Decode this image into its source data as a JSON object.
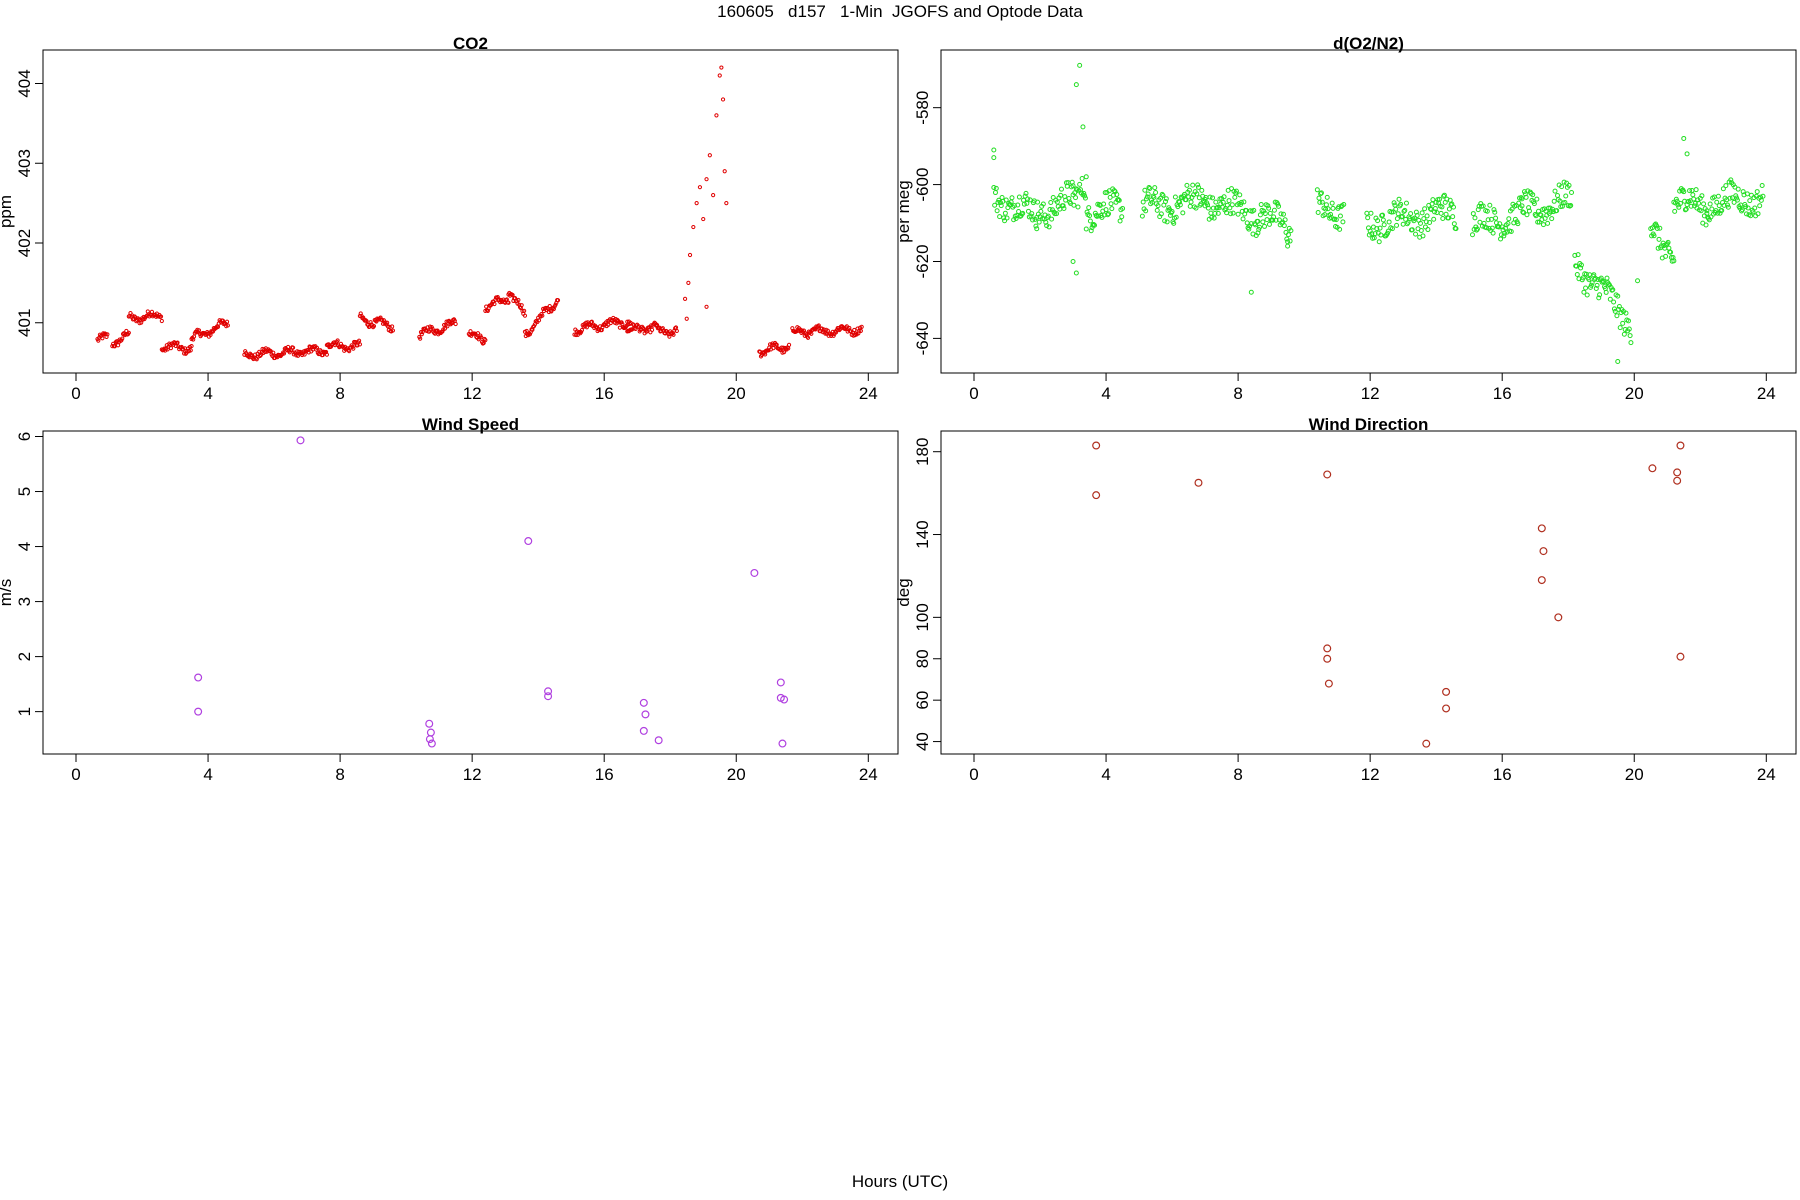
{
  "figure": {
    "title": "160605   d157   1-Min  JGOFS and Optode Data",
    "xlabel": "Hours (UTC)"
  },
  "colors": {
    "co2": "#e00000",
    "o2n2": "#22dd22",
    "wind_speed": "#b040e0",
    "wind_dir": "#b03020"
  },
  "chart_data": [
    {
      "id": "co2",
      "type": "scatter",
      "title": "CO2",
      "ylabel": "ppm",
      "xlim": [
        -1,
        24.9
      ],
      "ylim": [
        400.37,
        404.42
      ],
      "xticks": [
        0,
        4,
        8,
        12,
        16,
        20,
        24
      ],
      "yticks": [
        401,
        402,
        403,
        404
      ],
      "segments": [
        {
          "x0": 0.65,
          "x1": 0.95,
          "y0": 400.8,
          "y1": 400.8
        },
        {
          "x0": 1.1,
          "x1": 1.6,
          "y0": 400.75,
          "y1": 400.85
        },
        {
          "x0": 1.6,
          "x1": 2.6,
          "y0": 401.05,
          "y1": 401.1
        },
        {
          "x0": 2.6,
          "x1": 3.5,
          "y0": 400.7,
          "y1": 400.68
        },
        {
          "x0": 3.5,
          "x1": 4.6,
          "y0": 400.8,
          "y1": 401.0
        },
        {
          "x0": 5.1,
          "x1": 7.6,
          "y0": 400.6,
          "y1": 400.65
        },
        {
          "x0": 7.6,
          "x1": 8.6,
          "y0": 400.72,
          "y1": 400.7
        },
        {
          "x0": 8.6,
          "x1": 9.6,
          "y0": 401.05,
          "y1": 400.95
        },
        {
          "x0": 10.4,
          "x1": 11.5,
          "y0": 400.85,
          "y1": 401.0
        },
        {
          "x0": 11.9,
          "x1": 12.4,
          "y0": 400.85,
          "y1": 400.8
        },
        {
          "x0": 12.4,
          "x1": 13.1,
          "y0": 401.2,
          "y1": 401.3
        },
        {
          "x0": 13.1,
          "x1": 13.6,
          "y0": 401.4,
          "y1": 401.1
        },
        {
          "x0": 13.6,
          "x1": 14.6,
          "y0": 400.85,
          "y1": 401.3
        },
        {
          "x0": 15.1,
          "x1": 16.4,
          "y0": 400.92,
          "y1": 401.0
        },
        {
          "x0": 16.4,
          "x1": 16.8,
          "y0": 401.0,
          "y1": 401.0
        },
        {
          "x0": 16.7,
          "x1": 17.6,
          "y0": 400.9,
          "y1": 400.95
        },
        {
          "x0": 17.6,
          "x1": 18.2,
          "y0": 400.88,
          "y1": 400.9
        },
        {
          "x0": 20.7,
          "x1": 21.6,
          "y0": 400.65,
          "y1": 400.7
        },
        {
          "x0": 21.7,
          "x1": 23.8,
          "y0": 400.88,
          "y1": 400.92
        }
      ],
      "points": [
        [
          18.45,
          401.3
        ],
        [
          18.55,
          401.5
        ],
        [
          18.6,
          401.85
        ],
        [
          18.7,
          402.2
        ],
        [
          18.8,
          402.5
        ],
        [
          18.9,
          402.7
        ],
        [
          19.0,
          402.3
        ],
        [
          19.1,
          402.8
        ],
        [
          19.2,
          403.1
        ],
        [
          19.3,
          402.6
        ],
        [
          19.4,
          403.6
        ],
        [
          19.5,
          404.1
        ],
        [
          19.55,
          404.2
        ],
        [
          19.6,
          403.8
        ],
        [
          19.65,
          402.9
        ],
        [
          19.7,
          402.5
        ],
        [
          19.1,
          401.2
        ],
        [
          18.5,
          401.05
        ]
      ]
    },
    {
      "id": "o2n2",
      "type": "scatter",
      "title": "d(O2/N2)",
      "ylabel": "per meg",
      "xlim": [
        -1,
        24.9
      ],
      "ylim": [
        -649,
        -565
      ],
      "xticks": [
        0,
        4,
        8,
        12,
        16,
        20,
        24
      ],
      "yticks": [
        -580,
        -600,
        -620,
        -640
      ],
      "segments": [
        {
          "x0": 0.6,
          "x1": 1.9,
          "y0": -603,
          "y1": -608
        },
        {
          "x0": 1.9,
          "x1": 3.0,
          "y0": -607,
          "y1": -604
        },
        {
          "x0": 3.0,
          "x1": 3.4,
          "y0": -605,
          "y1": -598
        },
        {
          "x0": 3.4,
          "x1": 4.5,
          "y0": -607,
          "y1": -606
        },
        {
          "x0": 5.1,
          "x1": 7.0,
          "y0": -606,
          "y1": -604
        },
        {
          "x0": 7.0,
          "x1": 8.6,
          "y0": -604,
          "y1": -608
        },
        {
          "x0": 8.6,
          "x1": 9.6,
          "y0": -607,
          "y1": -612
        },
        {
          "x0": 10.4,
          "x1": 11.2,
          "y0": -606,
          "y1": -607
        },
        {
          "x0": 11.9,
          "x1": 14.6,
          "y0": -610,
          "y1": -607
        },
        {
          "x0": 15.1,
          "x1": 16.6,
          "y0": -610,
          "y1": -608
        },
        {
          "x0": 16.6,
          "x1": 18.1,
          "y0": -607,
          "y1": -604
        },
        {
          "x0": 18.2,
          "x1": 19.9,
          "y0": -620,
          "y1": -636
        },
        {
          "x0": 20.5,
          "x1": 21.2,
          "y0": -612,
          "y1": -618
        },
        {
          "x0": 21.2,
          "x1": 22.2,
          "y0": -604,
          "y1": -606
        },
        {
          "x0": 22.2,
          "x1": 23.9,
          "y0": -605,
          "y1": -603
        }
      ],
      "points": [
        [
          0.6,
          -591
        ],
        [
          0.6,
          -593
        ],
        [
          3.2,
          -569
        ],
        [
          3.1,
          -574
        ],
        [
          3.3,
          -585
        ],
        [
          3.0,
          -620
        ],
        [
          3.1,
          -623
        ],
        [
          8.4,
          -628
        ],
        [
          9.5,
          -616
        ],
        [
          20.1,
          -625
        ],
        [
          19.5,
          -646
        ],
        [
          21.5,
          -588
        ],
        [
          21.6,
          -592
        ]
      ]
    },
    {
      "id": "wind_speed",
      "type": "scatter",
      "title": "Wind Speed",
      "ylabel": "m/s",
      "xlim": [
        -1,
        24.9
      ],
      "ylim": [
        0.23,
        6.1
      ],
      "xticks": [
        0,
        4,
        8,
        12,
        16,
        20,
        24
      ],
      "yticks": [
        1,
        2,
        3,
        4,
        5,
        6
      ],
      "points": [
        [
          3.7,
          1.62
        ],
        [
          3.7,
          1.0
        ],
        [
          6.8,
          5.93
        ],
        [
          10.7,
          0.78
        ],
        [
          10.75,
          0.62
        ],
        [
          10.72,
          0.5
        ],
        [
          10.78,
          0.42
        ],
        [
          13.7,
          4.1
        ],
        [
          14.3,
          1.37
        ],
        [
          14.3,
          1.28
        ],
        [
          17.2,
          1.16
        ],
        [
          17.25,
          0.95
        ],
        [
          17.2,
          0.65
        ],
        [
          17.65,
          0.48
        ],
        [
          20.55,
          3.52
        ],
        [
          21.35,
          1.53
        ],
        [
          21.35,
          1.25
        ],
        [
          21.45,
          1.22
        ],
        [
          21.4,
          0.42
        ]
      ]
    },
    {
      "id": "wind_dir",
      "type": "scatter",
      "title": "Wind Direction",
      "ylabel": "deg",
      "xlim": [
        -1,
        24.9
      ],
      "ylim": [
        34,
        190
      ],
      "xticks": [
        0,
        4,
        8,
        12,
        16,
        20,
        24
      ],
      "yticks": [
        40,
        60,
        80,
        100,
        140,
        180
      ],
      "points": [
        [
          3.7,
          183
        ],
        [
          3.7,
          159
        ],
        [
          6.8,
          165
        ],
        [
          10.7,
          169
        ],
        [
          10.7,
          85
        ],
        [
          10.7,
          80
        ],
        [
          10.75,
          68
        ],
        [
          13.7,
          39
        ],
        [
          14.3,
          64
        ],
        [
          14.3,
          56
        ],
        [
          17.2,
          143
        ],
        [
          17.25,
          132
        ],
        [
          17.2,
          118
        ],
        [
          17.7,
          100
        ],
        [
          20.55,
          172
        ],
        [
          21.3,
          170
        ],
        [
          21.3,
          166
        ],
        [
          21.4,
          183
        ],
        [
          21.4,
          81
        ]
      ]
    }
  ]
}
